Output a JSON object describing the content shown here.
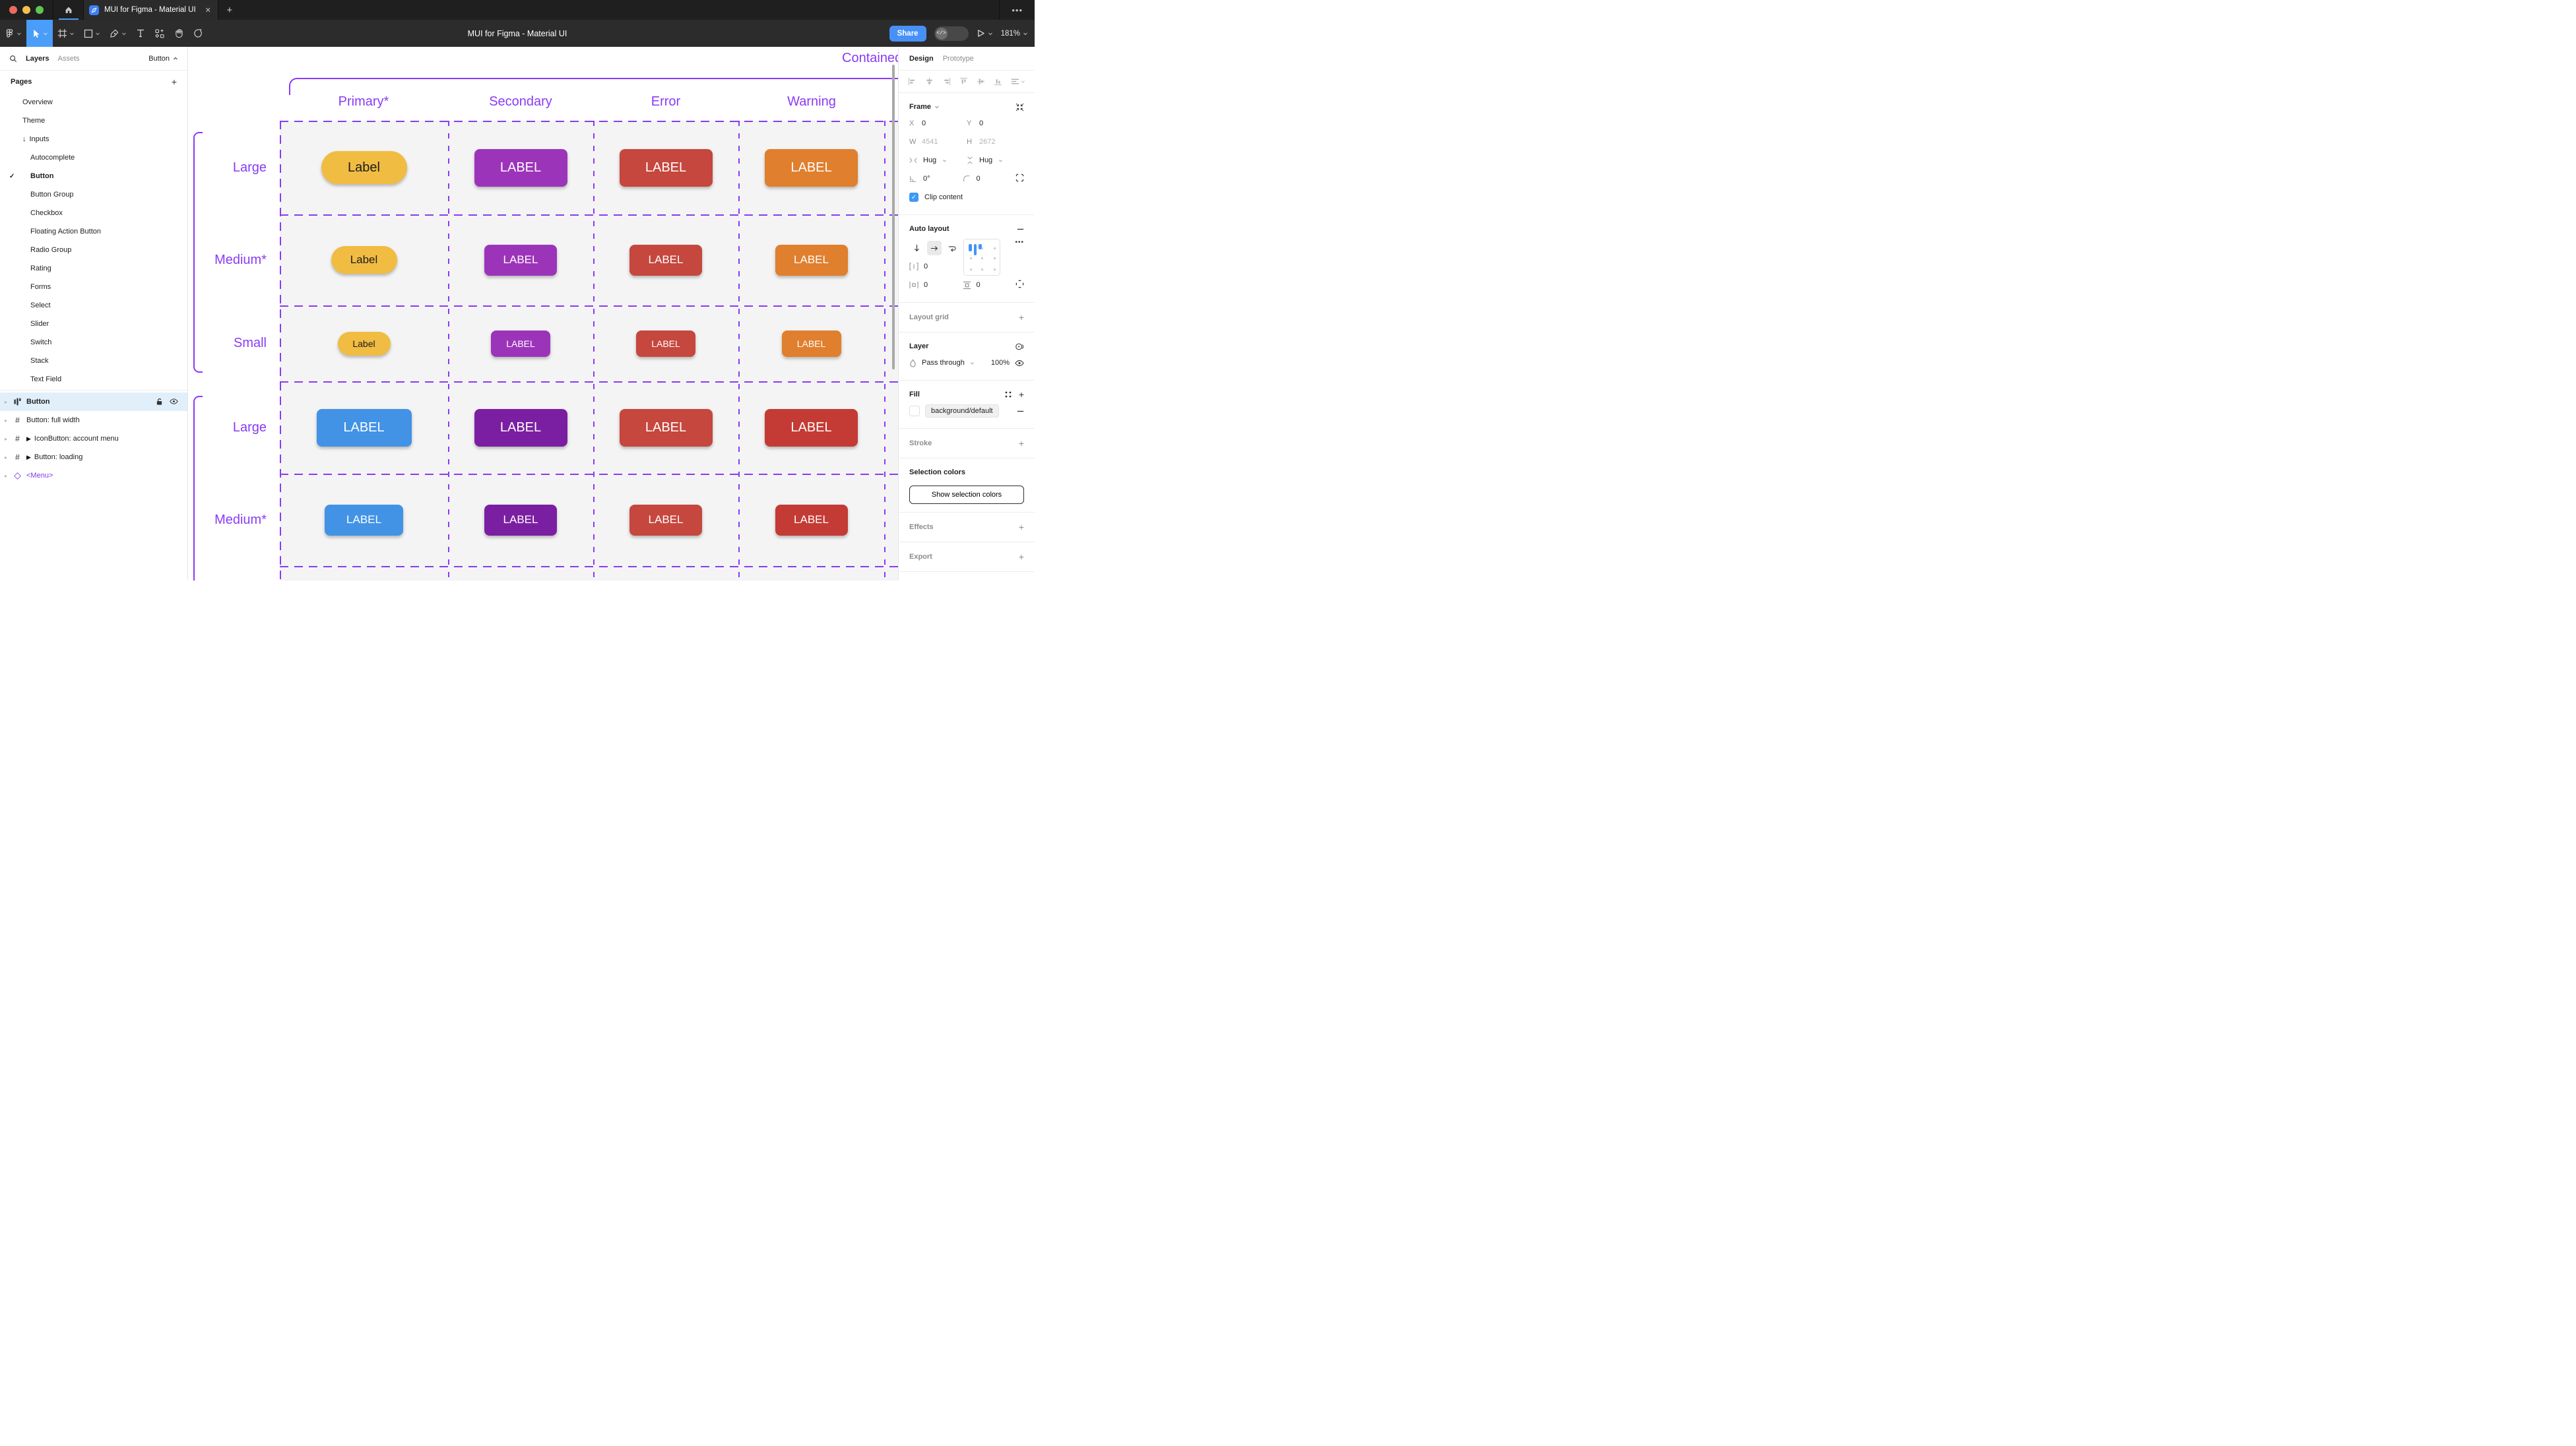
{
  "titlebar": {
    "tab_title": "MUI for Figma - Material UI",
    "close_glyph": "✕",
    "new_tab_glyph": "+",
    "overflow_glyph": "•••",
    "traffic_lights": [
      "#ec6a5e",
      "#f5bf4f",
      "#61c554"
    ],
    "accent": "#4a9df8"
  },
  "toolbar": {
    "document_title": "MUI for Figma - Material UI",
    "share_label": "Share",
    "dev_toggle_glyph": "</>",
    "zoom_level": "181%",
    "selected_tool": "move",
    "selected_color": "#4a9df8"
  },
  "sidebar": {
    "tabs": [
      {
        "label": "Layers",
        "active": true
      },
      {
        "label": "Assets",
        "active": false
      }
    ],
    "page_selector": "Button",
    "pages_header": "Pages",
    "add_page_glyph": "+",
    "check_glyph": "✓",
    "arrow_glyph": "↓",
    "pages": [
      {
        "label": "Overview",
        "indent": 0
      },
      {
        "label": "Theme",
        "indent": 0
      },
      {
        "label": "Inputs",
        "indent": 0,
        "arrow": true
      },
      {
        "label": "Autocomplete",
        "indent": 1
      },
      {
        "label": "Button",
        "indent": 1,
        "checked": true,
        "bold": true
      },
      {
        "label": "Button Group",
        "indent": 1
      },
      {
        "label": "Checkbox",
        "indent": 1
      },
      {
        "label": "Floating Action Button",
        "indent": 1
      },
      {
        "label": "Radio Group",
        "indent": 1
      },
      {
        "label": "Rating",
        "indent": 1
      },
      {
        "label": "Forms",
        "indent": 1
      },
      {
        "label": "Select",
        "indent": 1
      },
      {
        "label": "Slider",
        "indent": 1
      },
      {
        "label": "Switch",
        "indent": 1
      },
      {
        "label": "Stack",
        "indent": 1
      },
      {
        "label": "Text Field",
        "indent": 1
      }
    ],
    "layers": [
      {
        "label": "Button",
        "icon": "autolayout",
        "selected": true
      },
      {
        "label": "Button: full width",
        "icon": "frame"
      },
      {
        "label": "IconButton: account menu",
        "icon": "frame",
        "marker": true
      },
      {
        "label": "Button: loading",
        "icon": "frame",
        "marker": true
      },
      {
        "label": "<Menu>",
        "icon": "instance",
        "color": "#8638e5"
      }
    ]
  },
  "inspector": {
    "tabs": [
      {
        "label": "Design",
        "active": true
      },
      {
        "label": "Prototype",
        "active": false
      }
    ],
    "frame": {
      "title": "Frame",
      "x_label": "X",
      "x": "0",
      "y_label": "Y",
      "y": "0",
      "w_label": "W",
      "w": "4541",
      "h_label": "H",
      "h": "2672",
      "h_sizing": "Hug",
      "v_sizing": "Hug",
      "rotation": "0°",
      "corner_radius": "0",
      "clip_label": "Clip content"
    },
    "auto_layout": {
      "title": "Auto layout",
      "gap": "0",
      "padding_h": "0",
      "padding_v": "0",
      "more_glyph": "•••"
    },
    "layout_grid": {
      "title": "Layout grid"
    },
    "layer": {
      "title": "Layer",
      "blend_mode": "Pass through",
      "opacity": "100%"
    },
    "fill": {
      "title": "Fill",
      "style_name": "background/default"
    },
    "stroke": {
      "title": "Stroke"
    },
    "selection_colors": {
      "title": "Selection colors",
      "button_label": "Show selection colors"
    },
    "effects": {
      "title": "Effects"
    },
    "export": {
      "title": "Export"
    }
  },
  "canvas": {
    "frame_label": "Contained",
    "accent": "#8a3af5",
    "columns": [
      "Primary*",
      "Secondary",
      "Error",
      "Warning"
    ],
    "rows": [
      {
        "label": "Large",
        "buttons": [
          {
            "text": "Label",
            "bg": "#f1bc42",
            "fg": "#1c1c1c",
            "w": 130,
            "h": 50,
            "fs": 20,
            "r": 25
          },
          {
            "text": "LABEL",
            "bg": "#9c34ba",
            "fg": "#ffffff",
            "w": 141,
            "h": 57,
            "fs": 20,
            "r": 8
          },
          {
            "text": "LABEL",
            "bg": "#c5473e",
            "fg": "#ffffff",
            "w": 141,
            "h": 57,
            "fs": 20,
            "r": 8
          },
          {
            "text": "LABEL",
            "bg": "#e07f2e",
            "fg": "#ffffff",
            "w": 141,
            "h": 57,
            "fs": 20,
            "r": 8
          }
        ]
      },
      {
        "label": "Medium*",
        "buttons": [
          {
            "text": "Label",
            "bg": "#f1bc42",
            "fg": "#1c1c1c",
            "w": 100,
            "h": 42,
            "fs": 17,
            "r": 21
          },
          {
            "text": "LABEL",
            "bg": "#9c34ba",
            "fg": "#ffffff",
            "w": 110,
            "h": 47,
            "fs": 17,
            "r": 8
          },
          {
            "text": "LABEL",
            "bg": "#c5473e",
            "fg": "#ffffff",
            "w": 110,
            "h": 47,
            "fs": 17,
            "r": 8
          },
          {
            "text": "LABEL",
            "bg": "#e07f2e",
            "fg": "#ffffff",
            "w": 110,
            "h": 47,
            "fs": 17,
            "r": 8
          }
        ]
      },
      {
        "label": "Small",
        "buttons": [
          {
            "text": "Label",
            "bg": "#f1bc42",
            "fg": "#1c1c1c",
            "w": 80,
            "h": 36,
            "fs": 14,
            "r": 18
          },
          {
            "text": "LABEL",
            "bg": "#9c34ba",
            "fg": "#ffffff",
            "w": 90,
            "h": 40,
            "fs": 14,
            "r": 8
          },
          {
            "text": "LABEL",
            "bg": "#c5473e",
            "fg": "#ffffff",
            "w": 90,
            "h": 40,
            "fs": 14,
            "r": 8
          },
          {
            "text": "LABEL",
            "bg": "#e07f2e",
            "fg": "#ffffff",
            "w": 90,
            "h": 40,
            "fs": 14,
            "r": 8
          }
        ]
      },
      {
        "label": "Large",
        "buttons": [
          {
            "text": "LABEL",
            "bg": "#4293e5",
            "fg": "#ffffff",
            "w": 144,
            "h": 57,
            "fs": 20,
            "r": 8
          },
          {
            "text": "LABEL",
            "bg": "#7b1fa2",
            "fg": "#ffffff",
            "w": 141,
            "h": 57,
            "fs": 20,
            "r": 8
          },
          {
            "text": "LABEL",
            "bg": "#c5473e",
            "fg": "#ffffff",
            "w": 141,
            "h": 57,
            "fs": 20,
            "r": 8
          },
          {
            "text": "LABEL",
            "bg": "#c33b34",
            "fg": "#ffffff",
            "w": 141,
            "h": 57,
            "fs": 20,
            "r": 8
          }
        ]
      },
      {
        "label": "Medium*",
        "buttons": [
          {
            "text": "LABEL",
            "bg": "#4293e5",
            "fg": "#ffffff",
            "w": 119,
            "h": 47,
            "fs": 17,
            "r": 8
          },
          {
            "text": "LABEL",
            "bg": "#7b1fa2",
            "fg": "#ffffff",
            "w": 110,
            "h": 47,
            "fs": 17,
            "r": 8
          },
          {
            "text": "LABEL",
            "bg": "#c5473e",
            "fg": "#ffffff",
            "w": 110,
            "h": 47,
            "fs": 17,
            "r": 8
          },
          {
            "text": "LABEL",
            "bg": "#c33b34",
            "fg": "#ffffff",
            "w": 110,
            "h": 47,
            "fs": 17,
            "r": 8
          }
        ]
      }
    ]
  }
}
